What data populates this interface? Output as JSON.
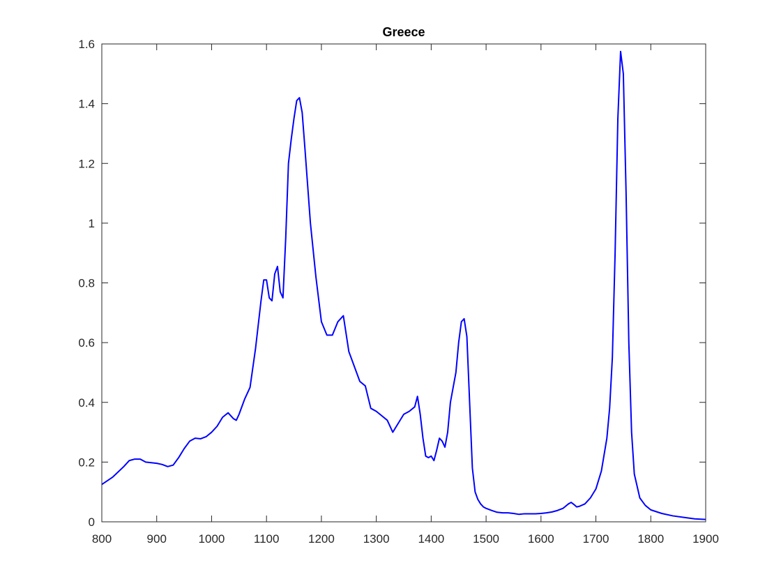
{
  "chart_data": {
    "type": "line",
    "title": "Greece",
    "xlabel": "",
    "ylabel": "",
    "xlim": [
      800,
      1900
    ],
    "ylim": [
      0,
      1.6
    ],
    "xticks": [
      "800",
      "900",
      "1000",
      "1100",
      "1200",
      "1300",
      "1400",
      "1500",
      "1600",
      "1700",
      "1800",
      "1900"
    ],
    "yticks": [
      "0",
      "0.2",
      "0.4",
      "0.6",
      "0.8",
      "1",
      "1.2",
      "1.4",
      "1.6"
    ],
    "grid": false,
    "line_color": "#0000ff",
    "axes_color": "#262626",
    "series": [
      {
        "x": [
          800,
          820,
          840,
          850,
          860,
          870,
          880,
          890,
          900,
          910,
          920,
          930,
          940,
          950,
          960,
          970,
          980,
          990,
          1000,
          1010,
          1020,
          1030,
          1040,
          1045,
          1050,
          1060,
          1070,
          1080,
          1090,
          1095,
          1100,
          1105,
          1110,
          1115,
          1120,
          1125,
          1130,
          1135,
          1140,
          1145,
          1150,
          1155,
          1160,
          1165,
          1170,
          1180,
          1190,
          1200,
          1210,
          1220,
          1230,
          1240,
          1250,
          1260,
          1270,
          1280,
          1290,
          1300,
          1310,
          1320,
          1330,
          1340,
          1350,
          1360,
          1370,
          1375,
          1380,
          1385,
          1390,
          1395,
          1400,
          1405,
          1410,
          1415,
          1420,
          1425,
          1430,
          1435,
          1440,
          1445,
          1450,
          1455,
          1460,
          1465,
          1470,
          1475,
          1480,
          1485,
          1490,
          1495,
          1500,
          1510,
          1520,
          1530,
          1540,
          1550,
          1560,
          1570,
          1580,
          1590,
          1600,
          1610,
          1620,
          1630,
          1640,
          1650,
          1655,
          1660,
          1665,
          1670,
          1680,
          1690,
          1700,
          1710,
          1720,
          1725,
          1730,
          1735,
          1740,
          1745,
          1750,
          1755,
          1760,
          1765,
          1770,
          1780,
          1790,
          1800,
          1820,
          1840,
          1860,
          1880,
          1900
        ],
        "y": [
          0.125,
          0.15,
          0.185,
          0.205,
          0.21,
          0.21,
          0.2,
          0.198,
          0.196,
          0.192,
          0.185,
          0.19,
          0.215,
          0.245,
          0.27,
          0.28,
          0.278,
          0.285,
          0.3,
          0.32,
          0.35,
          0.365,
          0.345,
          0.34,
          0.36,
          0.41,
          0.45,
          0.58,
          0.74,
          0.81,
          0.81,
          0.75,
          0.74,
          0.83,
          0.855,
          0.77,
          0.75,
          0.95,
          1.2,
          1.28,
          1.35,
          1.41,
          1.42,
          1.37,
          1.25,
          1.0,
          0.82,
          0.67,
          0.625,
          0.625,
          0.67,
          0.69,
          0.57,
          0.52,
          0.47,
          0.455,
          0.38,
          0.37,
          0.355,
          0.34,
          0.3,
          0.33,
          0.36,
          0.37,
          0.385,
          0.42,
          0.36,
          0.28,
          0.22,
          0.215,
          0.22,
          0.205,
          0.24,
          0.28,
          0.27,
          0.25,
          0.3,
          0.4,
          0.45,
          0.5,
          0.6,
          0.67,
          0.68,
          0.62,
          0.4,
          0.18,
          0.1,
          0.075,
          0.06,
          0.05,
          0.045,
          0.038,
          0.032,
          0.03,
          0.03,
          0.028,
          0.025,
          0.027,
          0.027,
          0.027,
          0.028,
          0.03,
          0.033,
          0.038,
          0.045,
          0.06,
          0.065,
          0.058,
          0.05,
          0.052,
          0.06,
          0.08,
          0.11,
          0.17,
          0.28,
          0.38,
          0.55,
          0.9,
          1.35,
          1.575,
          1.5,
          1.1,
          0.6,
          0.3,
          0.16,
          0.08,
          0.055,
          0.04,
          0.028,
          0.02,
          0.015,
          0.01,
          0.008
        ]
      }
    ]
  }
}
